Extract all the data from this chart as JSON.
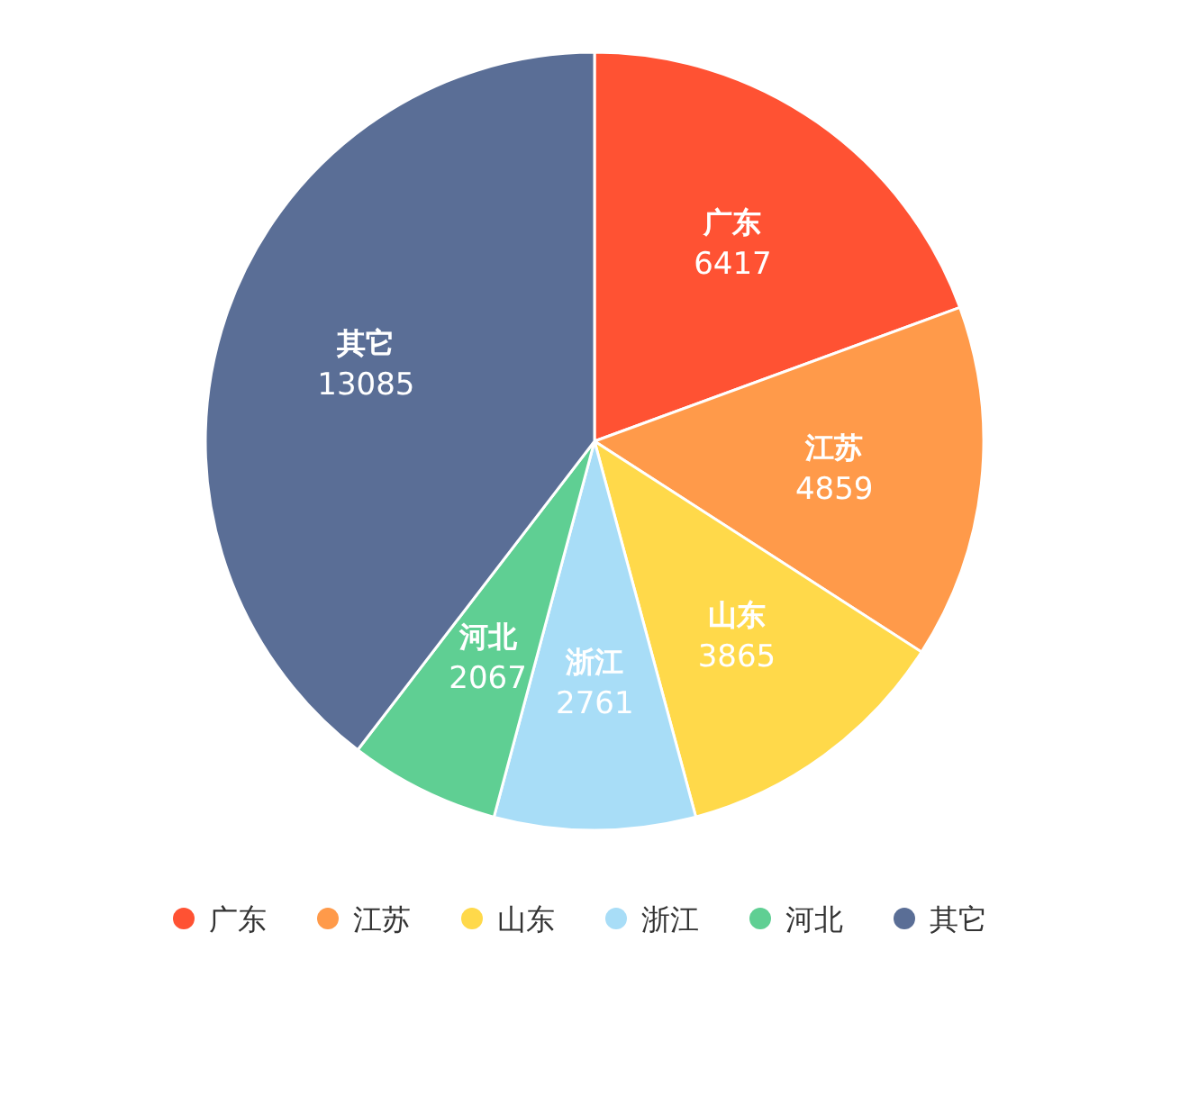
{
  "chart_data": {
    "type": "pie",
    "categories": [
      "广东",
      "江苏",
      "山东",
      "浙江",
      "河北",
      "其它"
    ],
    "values": [
      6417,
      4859,
      3865,
      2761,
      2067,
      13085
    ],
    "colors": [
      "#ff5233",
      "#ff9a4a",
      "#ffd94a",
      "#a8ddf7",
      "#5fcf93",
      "#5a6e96"
    ],
    "data_labels": true,
    "legend": "bottom"
  }
}
